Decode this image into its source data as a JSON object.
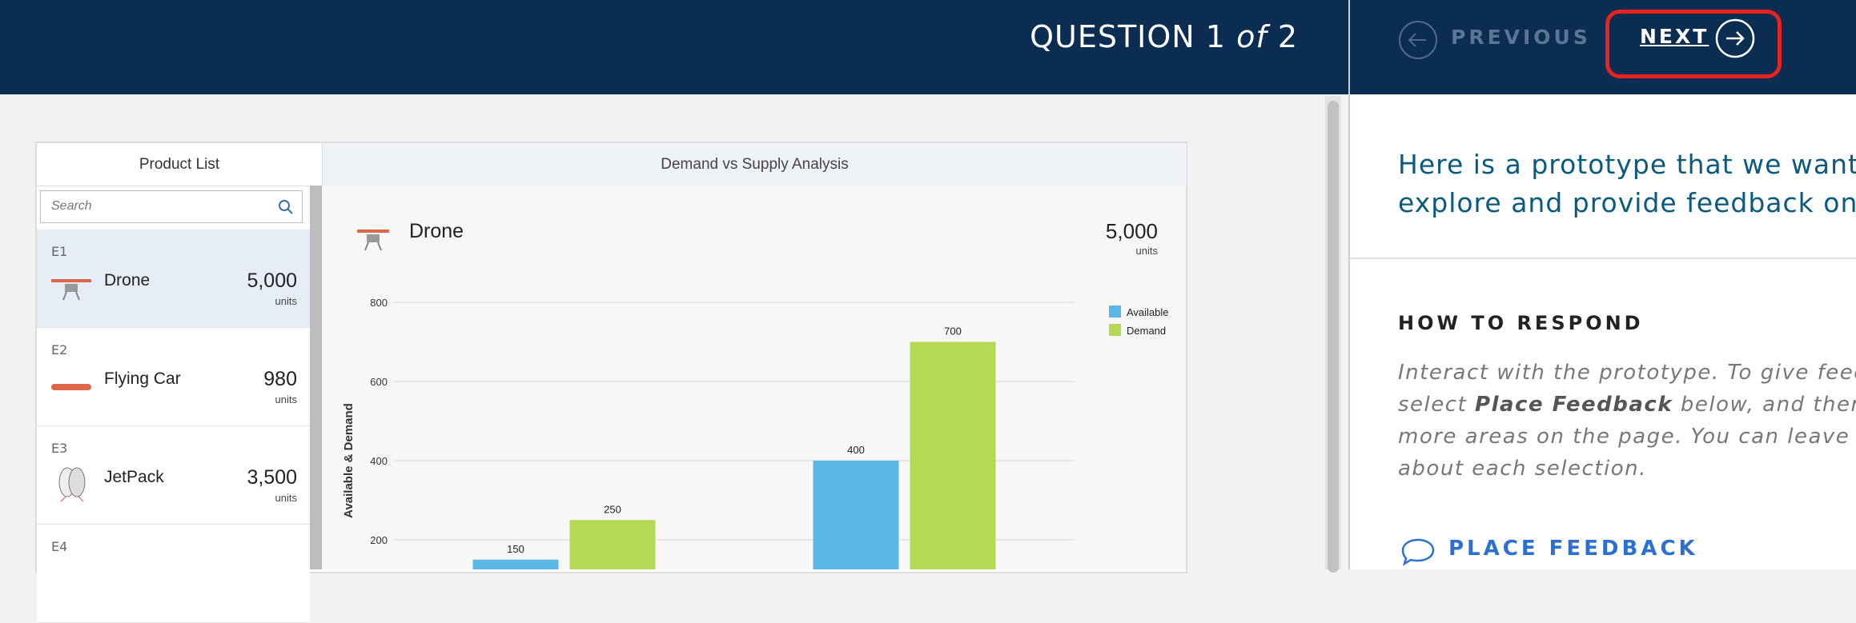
{
  "header": {
    "question": "QUESTION 1",
    "of": "of",
    "total": "2",
    "previous": "PREVIOUS",
    "next": "NEXT"
  },
  "product_list": {
    "title": "Product List",
    "search": "Search",
    "items": [
      {
        "id": "E1",
        "name": "Drone",
        "amount": "5,000",
        "unit": "units"
      },
      {
        "id": "E2",
        "name": "Flying Car",
        "amount": "980",
        "unit": "units"
      },
      {
        "id": "E3",
        "name": "JetPack",
        "amount": "3,500",
        "unit": "units"
      },
      {
        "id": "E4"
      }
    ]
  },
  "analysis": {
    "title": "Demand vs Supply Analysis",
    "product": "Drone",
    "amount": "5,000",
    "unit": "units"
  },
  "chart_data": {
    "type": "bar",
    "y_label": "Available & Demand",
    "categories": [
      null,
      null
    ],
    "series": [
      {
        "name": "Available",
        "color": "#5bb8e6",
        "values": [
          150,
          400
        ]
      },
      {
        "name": "Demand",
        "color": "#b5d955",
        "values": [
          250,
          700
        ]
      }
    ],
    "ylim": [
      0,
      800
    ],
    "yticks": [
      200,
      400,
      600,
      800
    ],
    "grid": true,
    "legend": "top-right"
  },
  "panel": {
    "intro": [
      "Here is a prototype that we want y",
      "explore and provide feedback on"
    ],
    "how_title": "HOW TO RESPOND",
    "how_lines": [
      [
        "Interact with the prototype. To give feedbac"
      ],
      [
        "select ",
        "Place Feedback",
        " below, and then sele"
      ],
      [
        "more areas on the page. You can leave a co"
      ],
      [
        "about each selection."
      ]
    ],
    "place_feedback": "PLACE FEEDBACK"
  }
}
